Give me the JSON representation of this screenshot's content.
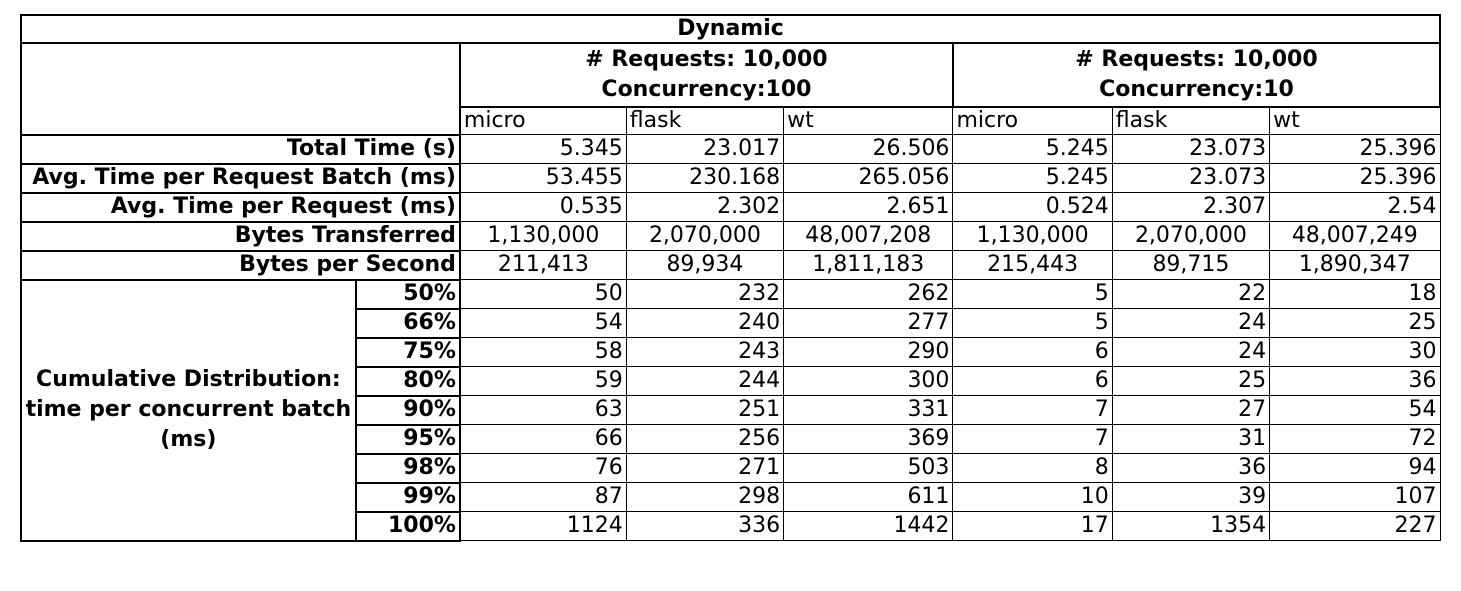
{
  "title": "Dynamic",
  "groups": [
    {
      "line1": "# Requests: 10,000",
      "line2": "Concurrency:100"
    },
    {
      "line1": "# Requests: 10,000",
      "line2": "Concurrency:10"
    }
  ],
  "subheaders": [
    "micro",
    "flask",
    "wt",
    "micro",
    "flask",
    "wt"
  ],
  "metrics": [
    {
      "label": "Total Time (s)",
      "values": [
        "5.345",
        "23.017",
        "26.506",
        "5.245",
        "23.073",
        "25.396"
      ],
      "align": "right"
    },
    {
      "label": "Avg. Time per Request Batch (ms)",
      "values": [
        "53.455",
        "230.168",
        "265.056",
        "5.245",
        "23.073",
        "25.396"
      ],
      "align": "right"
    },
    {
      "label": "Avg. Time per Request (ms)",
      "values": [
        "0.535",
        "2.302",
        "2.651",
        "0.524",
        "2.307",
        "2.54"
      ],
      "align": "right"
    },
    {
      "label": "Bytes Transferred",
      "values": [
        "1,130,000",
        "2,070,000",
        "48,007,208",
        "1,130,000",
        "2,070,000",
        "48,007,249"
      ],
      "align": "center"
    },
    {
      "label": "Bytes per Second",
      "values": [
        "211,413",
        "89,934",
        "1,811,183",
        "215,443",
        "89,715",
        "1,890,347"
      ],
      "align": "center"
    }
  ],
  "distribution": {
    "label_line1": "Cumulative Distribution:",
    "label_line2": "time per concurrent batch",
    "label_line3": "(ms)",
    "rows": [
      {
        "pct": "50%",
        "values": [
          "50",
          "232",
          "262",
          "5",
          "22",
          "18"
        ]
      },
      {
        "pct": "66%",
        "values": [
          "54",
          "240",
          "277",
          "5",
          "24",
          "25"
        ]
      },
      {
        "pct": "75%",
        "values": [
          "58",
          "243",
          "290",
          "6",
          "24",
          "30"
        ]
      },
      {
        "pct": "80%",
        "values": [
          "59",
          "244",
          "300",
          "6",
          "25",
          "36"
        ]
      },
      {
        "pct": "90%",
        "values": [
          "63",
          "251",
          "331",
          "7",
          "27",
          "54"
        ]
      },
      {
        "pct": "95%",
        "values": [
          "66",
          "256",
          "369",
          "7",
          "31",
          "72"
        ]
      },
      {
        "pct": "98%",
        "values": [
          "76",
          "271",
          "503",
          "8",
          "36",
          "94"
        ]
      },
      {
        "pct": "99%",
        "values": [
          "87",
          "298",
          "611",
          "10",
          "39",
          "107"
        ]
      },
      {
        "pct": "100%",
        "values": [
          "1124",
          "336",
          "1442",
          "17",
          "1354",
          "227"
        ]
      }
    ]
  }
}
